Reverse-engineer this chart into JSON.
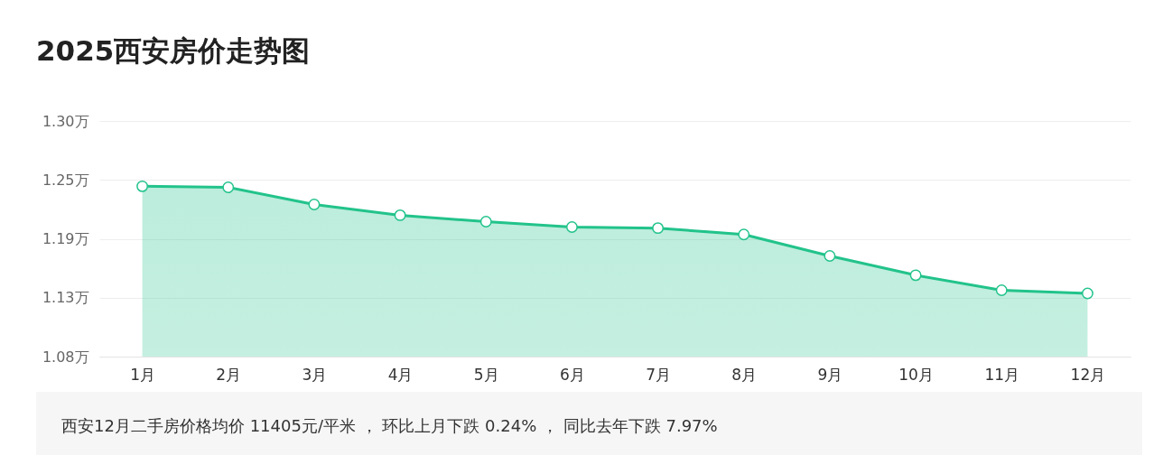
{
  "chart_data": {
    "type": "area",
    "title": "2025西安房价走势图",
    "categories": [
      "1月",
      "2月",
      "3月",
      "4月",
      "5月",
      "6月",
      "7月",
      "8月",
      "9月",
      "10月",
      "11月",
      "12月"
    ],
    "series": [
      {
        "color": "#22c38b",
        "values": [
          1.239,
          1.238,
          1.222,
          1.212,
          1.206,
          1.201,
          1.2,
          1.194,
          1.174,
          1.156,
          1.142,
          1.139
        ]
      }
    ],
    "ylim": [
      1.08,
      1.3
    ],
    "yticks": [
      {
        "value": 1.08,
        "label": "1.08万"
      },
      {
        "value": 1.135,
        "label": "1.13万"
      },
      {
        "value": 1.19,
        "label": "1.19万"
      },
      {
        "value": 1.245,
        "label": "1.25万"
      },
      {
        "value": 1.3,
        "label": "1.30万"
      }
    ],
    "grid": "y",
    "marker": "circle",
    "annotations": [
      "西安12月二手房价格均价 11405元/平米 ， 环比上月下跌 0.24% ， 同比去年下跌 7.97%"
    ]
  }
}
